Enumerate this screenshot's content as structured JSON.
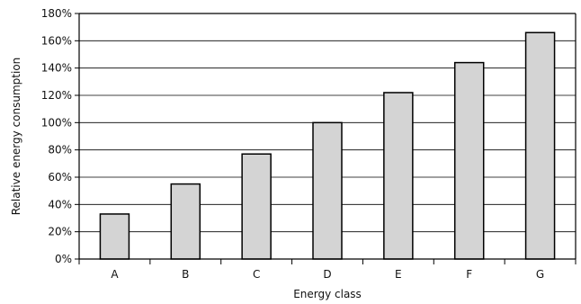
{
  "chart_data": {
    "type": "bar",
    "title": "",
    "xlabel": "Energy class",
    "ylabel": "Relative energy consumption",
    "categories": [
      "A",
      "B",
      "C",
      "D",
      "E",
      "F",
      "G"
    ],
    "values": [
      33,
      55,
      77,
      100,
      122,
      144,
      166
    ],
    "ylim": [
      0,
      180
    ],
    "yticks": [
      0,
      20,
      40,
      60,
      80,
      100,
      120,
      140,
      160,
      180
    ],
    "ytick_labels": [
      "0%",
      "20%",
      "40%",
      "60%",
      "80%",
      "100%",
      "120%",
      "140%",
      "160%",
      "180%"
    ],
    "grid": true,
    "legend": "none",
    "colors": {
      "bar_fill": "#d4d4d4",
      "bar_stroke": "#000000",
      "grid": "#000000",
      "axis": "#000000"
    }
  }
}
